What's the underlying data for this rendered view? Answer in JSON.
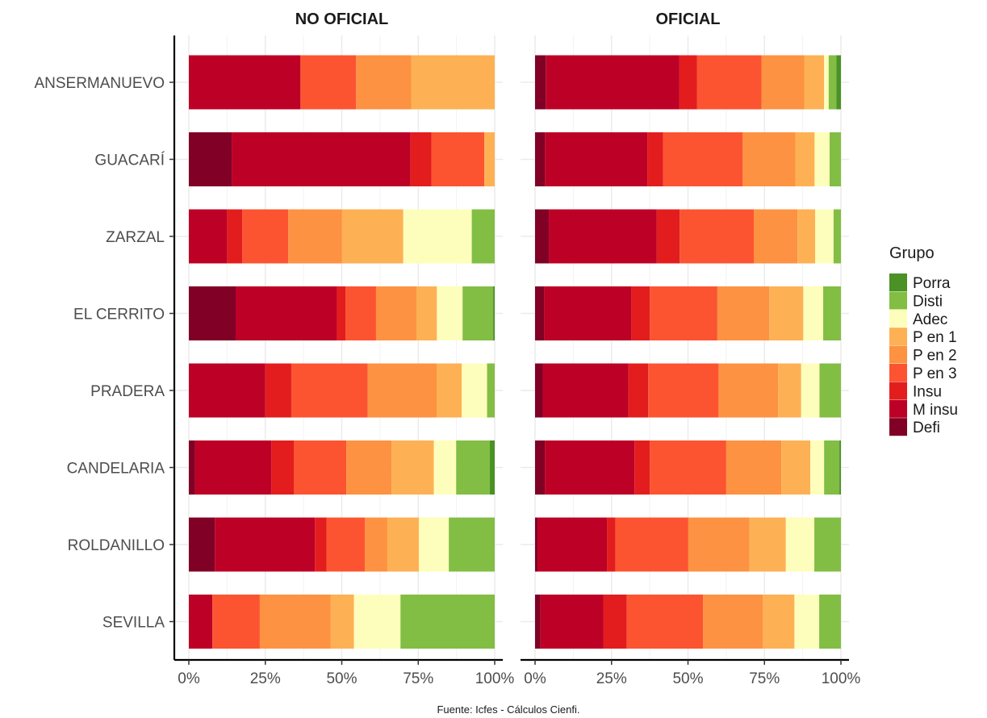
{
  "chart_data": {
    "type": "bar",
    "orientation": "horizontal",
    "stacked": "percent",
    "grid": true,
    "legend_position": "right",
    "caption": "Fuente: Icfes - Cálculos Cienfi.",
    "legend_title": "Grupo",
    "legend_order": [
      "Porra",
      "Disti",
      "Adec",
      "P en 1",
      "P en 2",
      "P en 3",
      "Insu",
      "M insu",
      "Defi"
    ],
    "stack_order": [
      "Defi",
      "M insu",
      "Insu",
      "P en 3",
      "P en 2",
      "P en 1",
      "Adec",
      "Disti",
      "Porra"
    ],
    "colors": {
      "Porra": "#4a9126",
      "Disti": "#82bd44",
      "Adec": "#fefebc",
      "P en 1": "#fdb154",
      "P en 2": "#fd9242",
      "P en 3": "#fc5430",
      "Insu": "#e31d1e",
      "M insu": "#bd0026",
      "Defi": "#800026"
    },
    "categories": [
      "ANSERMANUEVO",
      "GUACARÍ",
      "ZARZAL",
      "EL CERRITO",
      "PRADERA",
      "CANDELARIA",
      "ROLDANILLO",
      "SEVILLA"
    ],
    "x_ticks": [
      "0%",
      "25%",
      "50%",
      "75%",
      "100%"
    ],
    "xlim": [
      0,
      100
    ],
    "panels": [
      {
        "title": "NO OFICIAL",
        "bars": [
          {
            "category": "ANSERMANUEVO",
            "values": {
              "Defi": 0,
              "M insu": 36.5,
              "Insu": 0,
              "P en 3": 18.2,
              "P en 2": 18.0,
              "P en 1": 27.3,
              "Adec": 0,
              "Disti": 0,
              "Porra": 0
            }
          },
          {
            "category": "GUACARÍ",
            "values": {
              "Defi": 14.0,
              "M insu": 58.5,
              "Insu": 6.8,
              "P en 3": 17.3,
              "P en 2": 0,
              "P en 1": 3.4,
              "Adec": 0,
              "Disti": 0,
              "Porra": 0
            }
          },
          {
            "category": "ZARZAL",
            "values": {
              "Defi": 0,
              "M insu": 12.5,
              "Insu": 5.0,
              "P en 3": 15.0,
              "P en 2": 17.6,
              "P en 1": 20.0,
              "Adec": 22.4,
              "Disti": 7.5,
              "Porra": 0
            }
          },
          {
            "category": "EL CERRITO",
            "values": {
              "Defi": 15.3,
              "M insu": 33.1,
              "Insu": 2.8,
              "P en 3": 10.0,
              "P en 2": 13.2,
              "P en 1": 6.7,
              "Adec": 8.4,
              "Disti": 10.0,
              "Porra": 0.5
            }
          },
          {
            "category": "PRADERA",
            "values": {
              "Defi": 0,
              "M insu": 25.0,
              "Insu": 8.5,
              "P en 3": 25.0,
              "P en 2": 22.5,
              "P en 1": 8.2,
              "Adec": 8.3,
              "Disti": 2.5,
              "Porra": 0
            }
          },
          {
            "category": "CANDELARIA",
            "values": {
              "Defi": 2.0,
              "M insu": 25.0,
              "Insu": 7.3,
              "P en 3": 17.2,
              "P en 2": 14.8,
              "P en 1": 13.8,
              "Adec": 7.3,
              "Disti": 11.0,
              "Porra": 1.6
            }
          },
          {
            "category": "ROLDANILLO",
            "values": {
              "Defi": 8.5,
              "M insu": 32.7,
              "Insu": 3.8,
              "P en 3": 12.6,
              "P en 2": 7.3,
              "P en 1": 10.3,
              "Adec": 9.8,
              "Disti": 15.0,
              "Porra": 0
            }
          },
          {
            "category": "SEVILLA",
            "values": {
              "Defi": 0,
              "M insu": 7.7,
              "Insu": 0,
              "P en 3": 15.5,
              "P en 2": 23.1,
              "P en 1": 7.7,
              "Adec": 15.2,
              "Disti": 30.8,
              "Porra": 0
            }
          }
        ]
      },
      {
        "title": "OFICIAL",
        "bars": [
          {
            "category": "ANSERMANUEVO",
            "values": {
              "Defi": 3.5,
              "M insu": 43.7,
              "Insu": 5.8,
              "P en 3": 21.0,
              "P en 2": 14.0,
              "P en 1": 6.5,
              "Adec": 1.5,
              "Disti": 2.5,
              "Porra": 1.5
            }
          },
          {
            "category": "GUACARÍ",
            "values": {
              "Defi": 3.2,
              "M insu": 33.5,
              "Insu": 5.2,
              "P en 3": 26.0,
              "P en 2": 17.2,
              "P en 1": 6.3,
              "Adec": 4.9,
              "Disti": 3.7,
              "Porra": 0
            }
          },
          {
            "category": "ZARZAL",
            "values": {
              "Defi": 4.5,
              "M insu": 35.3,
              "Insu": 7.5,
              "P en 3": 24.2,
              "P en 2": 14.3,
              "P en 1": 5.8,
              "Adec": 6.0,
              "Disti": 2.4,
              "Porra": 0
            }
          },
          {
            "category": "EL CERRITO",
            "values": {
              "Defi": 3.0,
              "M insu": 28.5,
              "Insu": 6.0,
              "P en 3": 22.1,
              "P en 2": 17.0,
              "P en 1": 11.1,
              "Adec": 6.5,
              "Disti": 5.8,
              "Porra": 0
            }
          },
          {
            "category": "PRADERA",
            "values": {
              "Defi": 2.5,
              "M insu": 28.0,
              "Insu": 6.5,
              "P en 3": 23.0,
              "P en 2": 19.5,
              "P en 1": 7.5,
              "Adec": 6.0,
              "Disti": 7.0,
              "Porra": 0
            }
          },
          {
            "category": "CANDELARIA",
            "values": {
              "Defi": 3.2,
              "M insu": 29.3,
              "Insu": 5.0,
              "P en 3": 25.0,
              "P en 2": 18.0,
              "P en 1": 9.5,
              "Adec": 4.5,
              "Disti": 5.0,
              "Porra": 0.5
            }
          },
          {
            "category": "ROLDANILLO",
            "values": {
              "Defi": 0.8,
              "M insu": 22.7,
              "Insu": 2.8,
              "P en 3": 23.8,
              "P en 2": 20.0,
              "P en 1": 11.9,
              "Adec": 9.3,
              "Disti": 8.7,
              "Porra": 0
            }
          },
          {
            "category": "SEVILLA",
            "values": {
              "Defi": 1.8,
              "M insu": 20.5,
              "Insu": 7.7,
              "P en 3": 24.9,
              "P en 2": 19.6,
              "P en 1": 10.3,
              "Adec": 8.1,
              "Disti": 7.1,
              "Porra": 0
            }
          }
        ]
      }
    ]
  }
}
